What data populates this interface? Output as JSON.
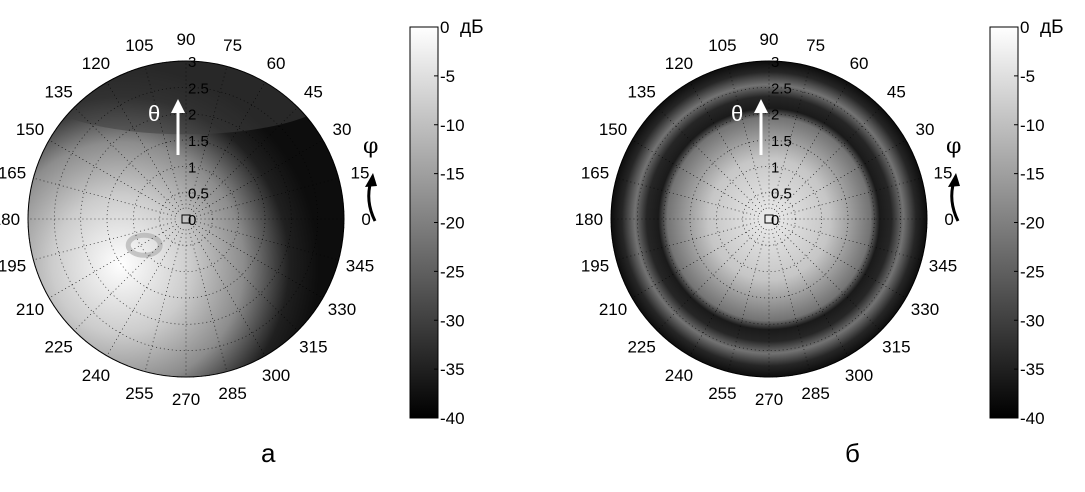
{
  "chart_data": [
    {
      "type": "heatmap",
      "projection": "polar",
      "panel_label": "а",
      "angle_ticks": [
        "0",
        "15",
        "30",
        "45",
        "60",
        "75",
        "90",
        "105",
        "120",
        "135",
        "150",
        "165",
        "180",
        "195",
        "210",
        "225",
        "240",
        "255",
        "270",
        "285",
        "300",
        "315",
        "330",
        "345"
      ],
      "radial_ticks": [
        "0",
        "0.5",
        "1",
        "1.5",
        "2",
        "2.5",
        "3"
      ],
      "radial_range": [
        0,
        3
      ],
      "theta_label": "θ",
      "phi_label": "φ",
      "colorbar": {
        "ticks": [
          "0",
          "-5",
          "-10",
          "-15",
          "-20",
          "-25",
          "-30",
          "-35",
          "-40"
        ],
        "range": [
          -40,
          0
        ],
        "unit": "дБ"
      },
      "colormap": "gray",
      "grid": true,
      "field": {
        "peak_db": 0,
        "peak_at": {
          "phi": 215,
          "theta": 1.5
        },
        "edge_db": -35,
        "rim_db": -38
      }
    },
    {
      "type": "heatmap",
      "projection": "polar",
      "panel_label": "б",
      "angle_ticks": [
        "0",
        "15",
        "30",
        "45",
        "60",
        "75",
        "90",
        "105",
        "120",
        "135",
        "150",
        "165",
        "180",
        "195",
        "210",
        "225",
        "240",
        "255",
        "270",
        "285",
        "300",
        "315",
        "330",
        "345"
      ],
      "radial_ticks": [
        "0",
        "0.5",
        "1",
        "1.5",
        "2",
        "2.5",
        "3"
      ],
      "radial_range": [
        0,
        3
      ],
      "theta_label": "θ",
      "phi_label": "φ",
      "colorbar": {
        "ticks": [
          "0",
          "-5",
          "-10",
          "-15",
          "-20",
          "-25",
          "-30",
          "-35",
          "-40"
        ],
        "range": [
          -40,
          0
        ],
        "unit": "дБ"
      },
      "colormap": "gray",
      "grid": true,
      "field": {
        "peak_db": -3,
        "peak_at": {
          "phi": 0,
          "theta": 0
        },
        "null_ring_theta": 2.1,
        "outer_ring_theta": 2.55,
        "rim_db": -38
      }
    }
  ]
}
